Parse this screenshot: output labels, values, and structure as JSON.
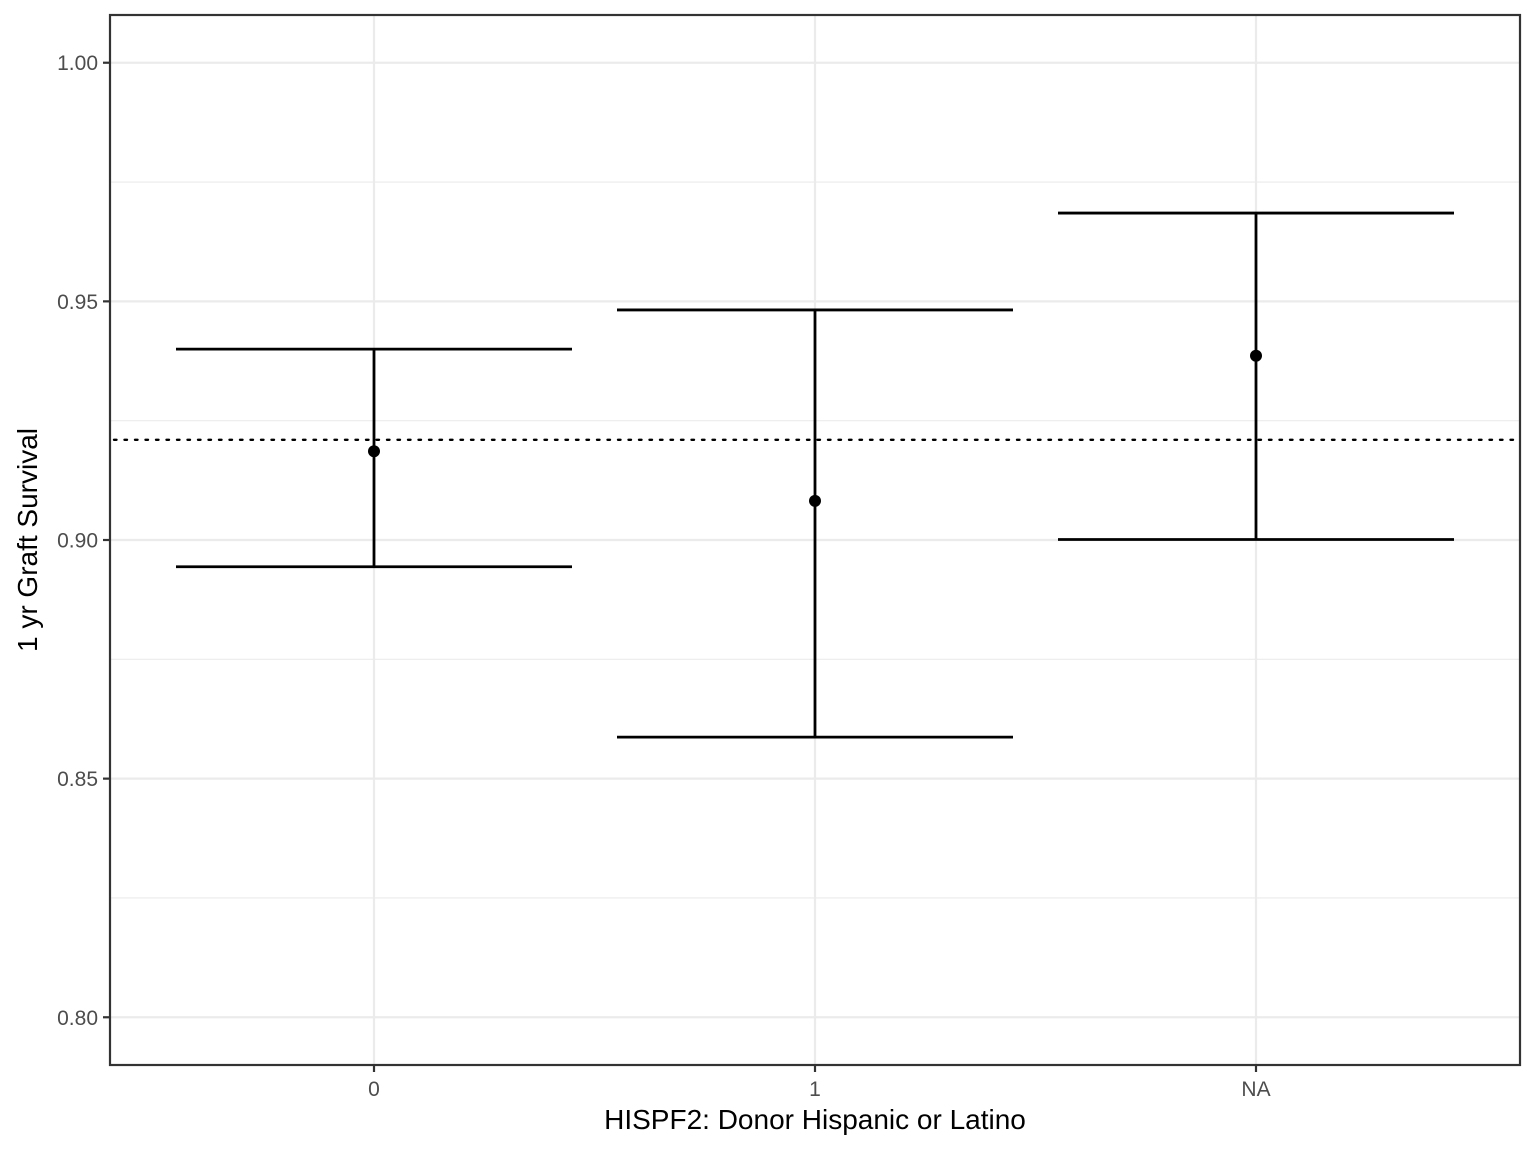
{
  "chart_data": {
    "type": "scatter",
    "title": "",
    "xlabel": "HISPF2: Donor Hispanic or Latino",
    "ylabel": "1 yr Graft Survival",
    "categories": [
      "0",
      "1",
      "NA"
    ],
    "series": [
      {
        "estimate": [
          0.9186,
          0.9082,
          0.9386
        ],
        "lower": [
          0.8944,
          0.8587,
          0.9001
        ],
        "upper": [
          0.94,
          0.9482,
          0.9685
        ]
      }
    ],
    "reference_line": 0.921,
    "ylim": [
      0.79,
      1.01
    ],
    "yticks": [
      0.8,
      0.85,
      0.9,
      0.95,
      1.0
    ],
    "ytick_labels": [
      "0.80",
      "0.85",
      "0.90",
      "0.95",
      "1.00"
    ],
    "grid": true,
    "legend": "none"
  }
}
